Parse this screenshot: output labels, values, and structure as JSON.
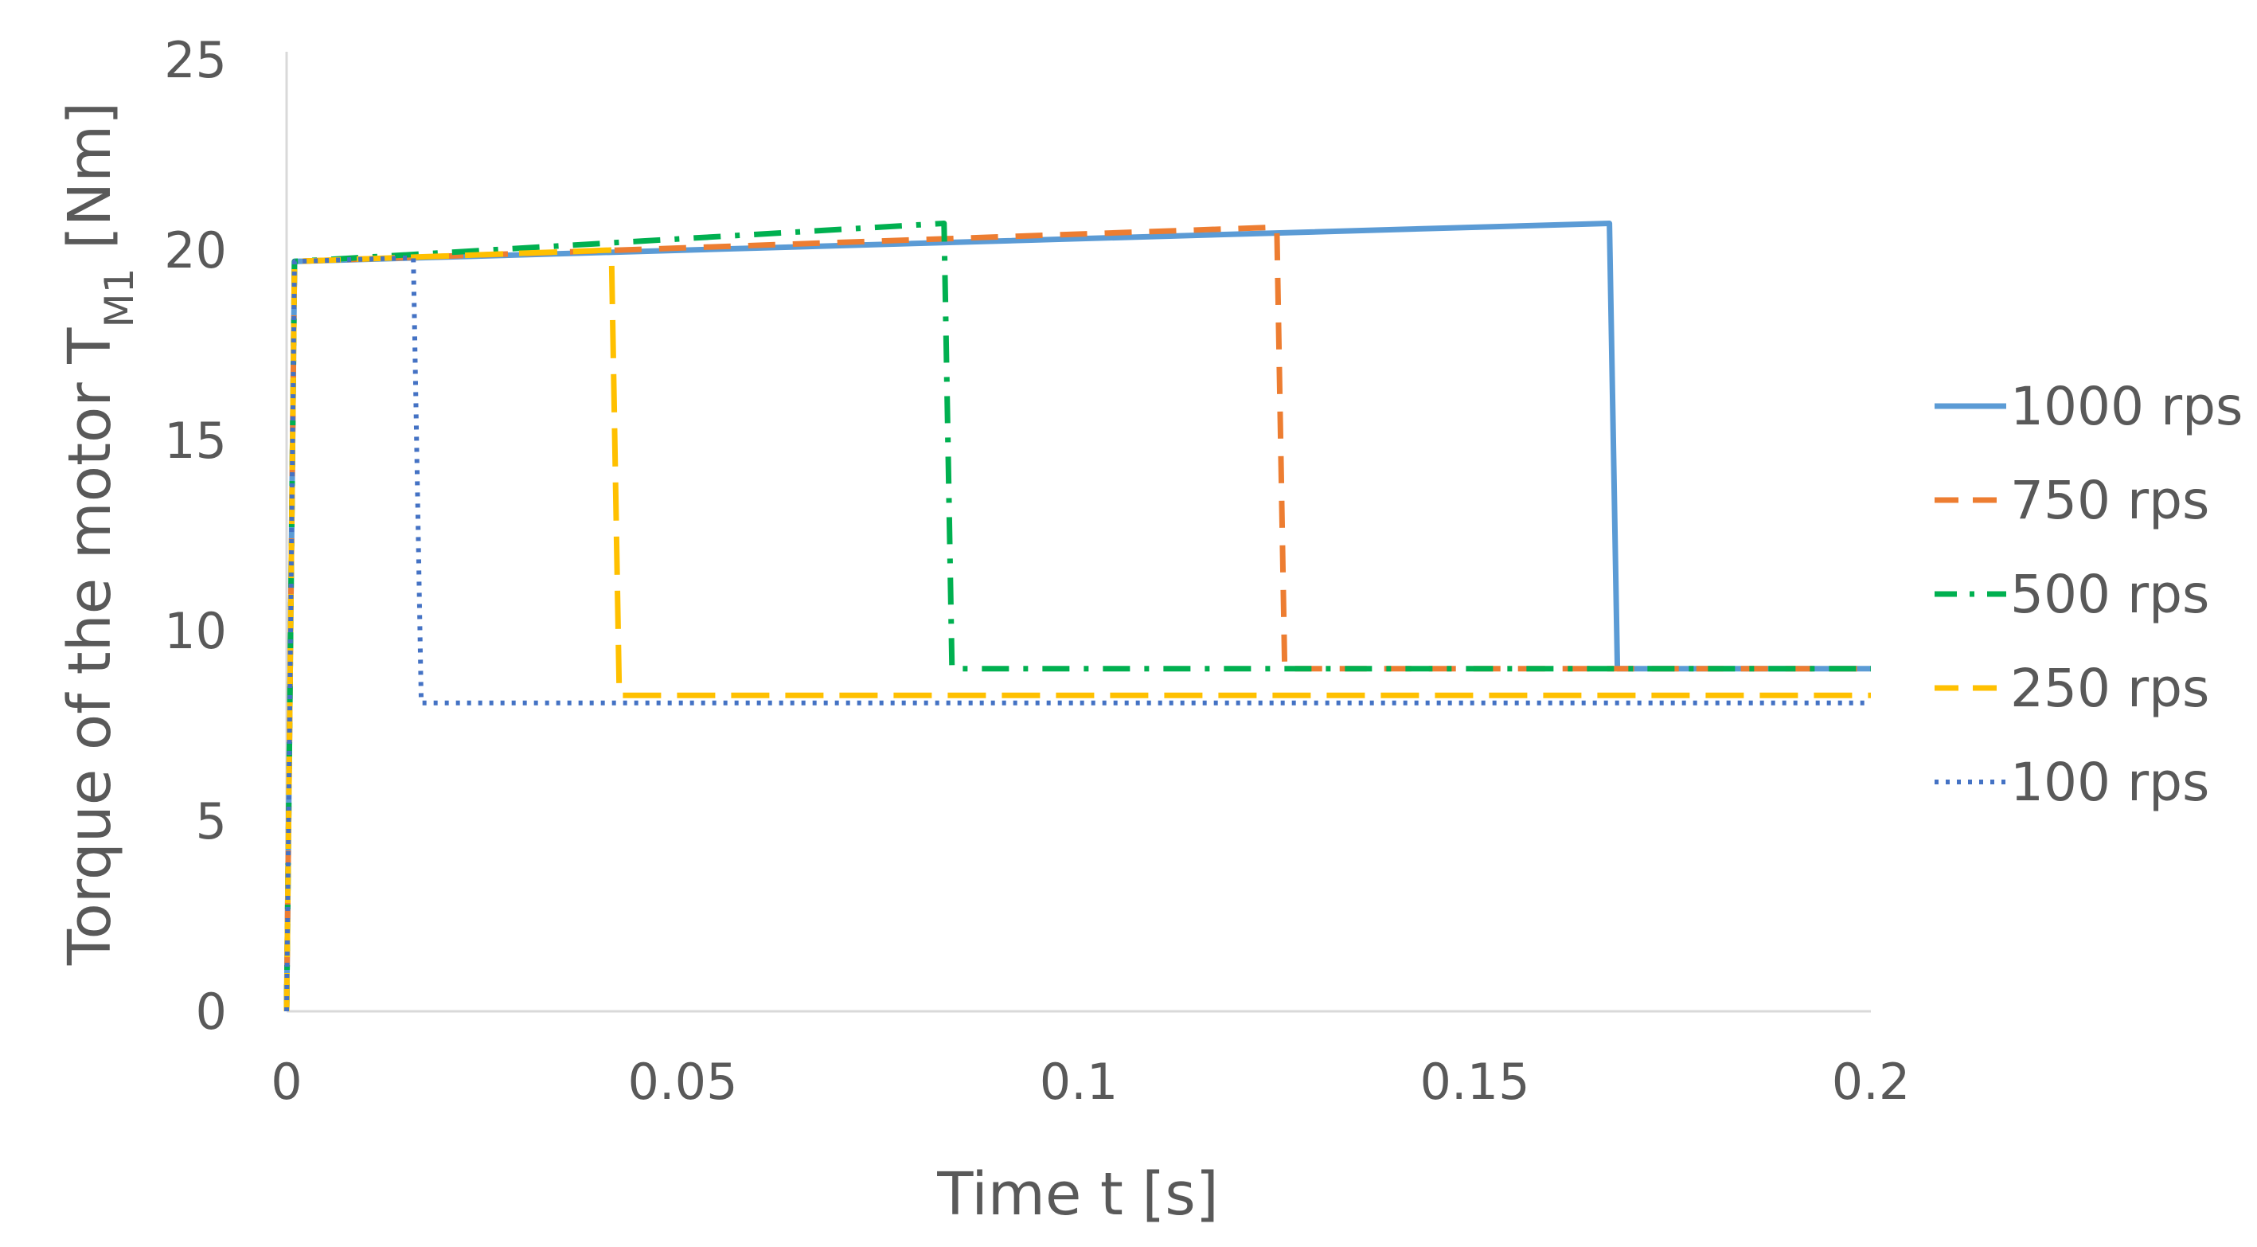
{
  "chart_data": {
    "type": "line",
    "title": "",
    "xlabel": "Time t [s]",
    "ylabel_main": "Torque of the motor T",
    "ylabel_sub": "M1",
    "ylabel_unit": " [Nm]",
    "xlim": [
      0,
      0.2
    ],
    "ylim": [
      0,
      25
    ],
    "x_ticks": [
      0,
      0.05,
      0.1,
      0.15,
      0.2
    ],
    "x_tick_labels": [
      "0",
      "0.05",
      "0.1",
      "0.15",
      "0.2"
    ],
    "y_ticks": [
      0,
      5,
      10,
      15,
      20,
      25
    ],
    "y_tick_labels": [
      "0",
      "5",
      "10",
      "15",
      "20",
      "25"
    ],
    "grid": false,
    "legend_position": "right",
    "series": [
      {
        "name": "1000 rps",
        "color": "#5B9BD5",
        "style": "solid",
        "points": [
          [
            0,
            0
          ],
          [
            0.001,
            19.7
          ],
          [
            0.167,
            20.7
          ],
          [
            0.168,
            9.0
          ],
          [
            0.2,
            9.0
          ]
        ]
      },
      {
        "name": "750 rps",
        "color": "#ED7D31",
        "style": "dashed",
        "points": [
          [
            0,
            0
          ],
          [
            0.001,
            19.7
          ],
          [
            0.125,
            20.6
          ],
          [
            0.126,
            9.0
          ],
          [
            0.2,
            9.0
          ]
        ]
      },
      {
        "name": "500 rps",
        "color": "#00B050",
        "style": "dashdot",
        "points": [
          [
            0,
            0
          ],
          [
            0.001,
            19.7
          ],
          [
            0.083,
            20.7
          ],
          [
            0.084,
            9.0
          ],
          [
            0.2,
            9.0
          ]
        ]
      },
      {
        "name": "250 rps",
        "color": "#FFC000",
        "style": "longdash",
        "points": [
          [
            0,
            0
          ],
          [
            0.001,
            19.7
          ],
          [
            0.041,
            20.0
          ],
          [
            0.042,
            8.3
          ],
          [
            0.2,
            8.3
          ]
        ]
      },
      {
        "name": "100 rps",
        "color": "#4472C4",
        "style": "dotted",
        "points": [
          [
            0,
            0
          ],
          [
            0.001,
            19.7
          ],
          [
            0.016,
            19.8
          ],
          [
            0.017,
            8.1
          ],
          [
            0.2,
            8.1
          ]
        ]
      }
    ]
  }
}
